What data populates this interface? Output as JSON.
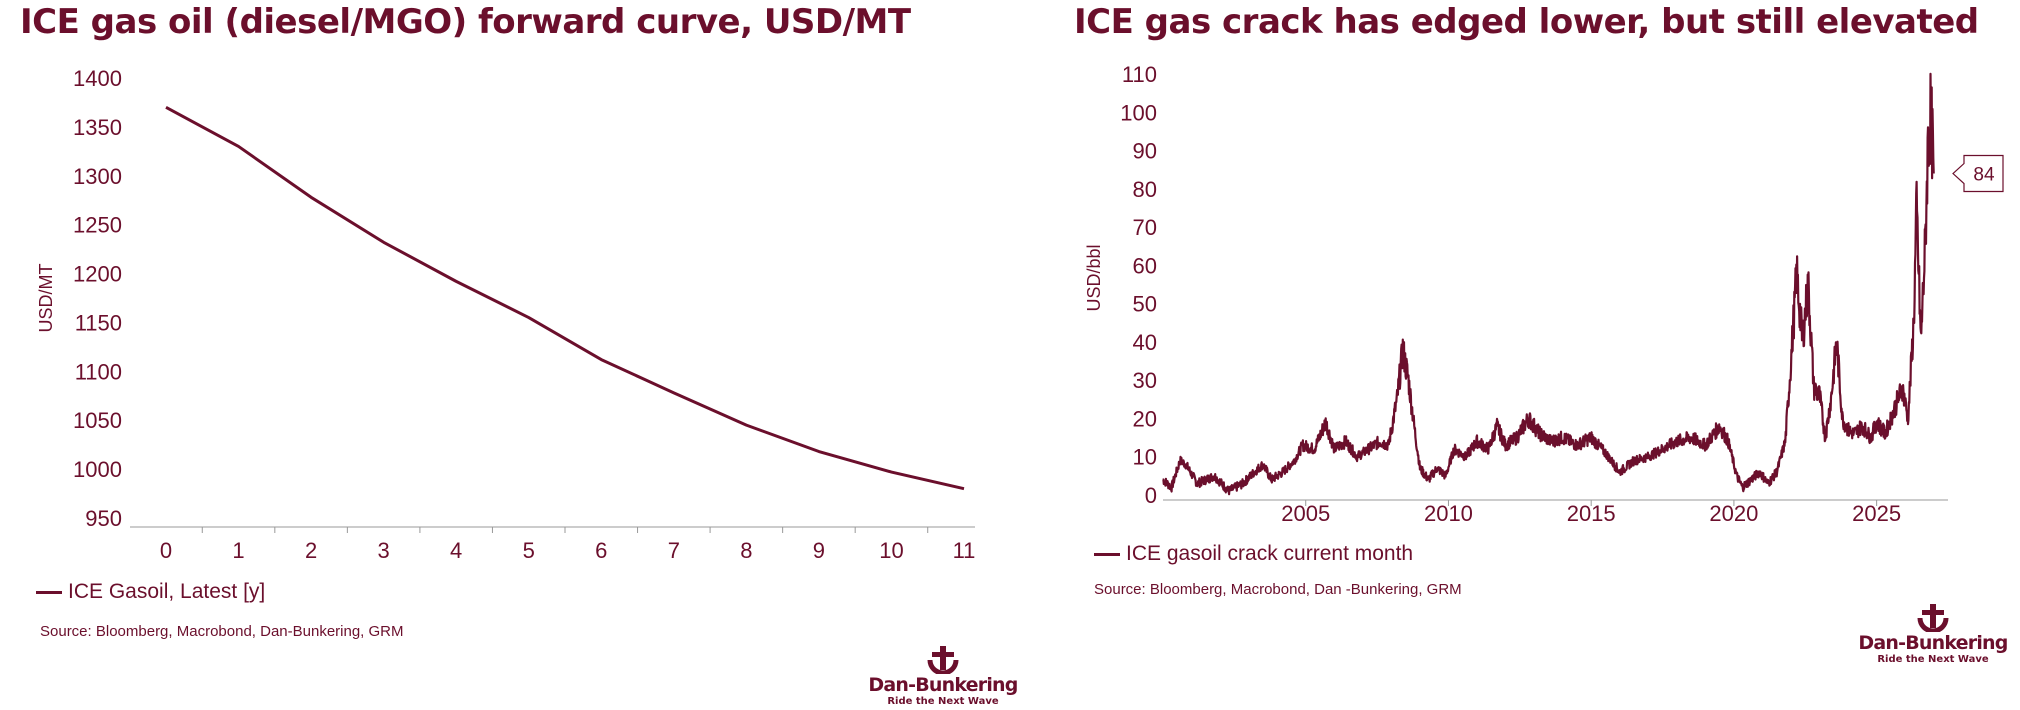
{
  "charts": {
    "left": {
      "title": "ICE gas oil (diesel/MGO) forward curve, USD/MT",
      "legend": "ICE Gasoil, Latest [y]",
      "source": "Source: Bloomberg, Macrobond, Dan-Bunkering, GRM"
    },
    "right": {
      "title": "ICE gas crack has edged lower, but still elevated",
      "legend": "ICE gasoil crack current month",
      "source": "Source: Bloomberg, Macrobond, Dan   -Bunkering, GRM"
    }
  },
  "logo": {
    "name": "Dan-Bunkering",
    "tagline": "Ride the Next Wave"
  },
  "colors": {
    "series": "#6b0f2c",
    "text": "#6b0f2c",
    "axis": "#999999"
  },
  "chart_data": [
    {
      "type": "line",
      "title": "ICE gas oil (diesel/MGO) forward curve, USD/MT",
      "xlabel": "",
      "ylabel": "USD/MT",
      "x": [
        0,
        1,
        2,
        3,
        4,
        5,
        6,
        7,
        8,
        9,
        10,
        11
      ],
      "xticks": [
        0,
        1,
        2,
        3,
        4,
        5,
        6,
        7,
        8,
        9,
        10,
        11
      ],
      "ylim": [
        950,
        1400
      ],
      "yticks": [
        950,
        1000,
        1050,
        1100,
        1150,
        1200,
        1250,
        1300,
        1350,
        1400
      ],
      "grid": false,
      "legend_position": "bottom-left",
      "series": [
        {
          "name": "ICE Gasoil, Latest [y]",
          "values": [
            1370,
            1330,
            1278,
            1232,
            1192,
            1155,
            1112,
            1078,
            1045,
            1018,
            997,
            980
          ]
        }
      ]
    },
    {
      "type": "line",
      "title": "ICE gas crack has edged lower, but still elevated",
      "xlabel": "",
      "ylabel": "USD/bbl",
      "xlim": [
        2000,
        2027.5
      ],
      "xticks": [
        2005,
        2010,
        2015,
        2020,
        2025
      ],
      "ylim": [
        0,
        110
      ],
      "yticks": [
        0,
        10,
        20,
        30,
        40,
        50,
        60,
        70,
        80,
        90,
        100,
        110
      ],
      "grid": false,
      "legend_position": "bottom-left",
      "annotation": {
        "value": "84",
        "y": 84
      },
      "series": [
        {
          "name": "ICE gasoil crack current month",
          "points": [
            [
              2000.0,
              4
            ],
            [
              2000.3,
              2
            ],
            [
              2000.6,
              9
            ],
            [
              2000.8,
              8
            ],
            [
              2001.2,
              3
            ],
            [
              2001.8,
              5
            ],
            [
              2002.3,
              1
            ],
            [
              2002.8,
              3
            ],
            [
              2003.2,
              6
            ],
            [
              2003.5,
              8
            ],
            [
              2003.8,
              4
            ],
            [
              2004.2,
              6
            ],
            [
              2004.6,
              9
            ],
            [
              2004.9,
              13
            ],
            [
              2005.3,
              12
            ],
            [
              2005.7,
              19
            ],
            [
              2006.0,
              12
            ],
            [
              2006.4,
              14
            ],
            [
              2006.8,
              10
            ],
            [
              2007.2,
              12
            ],
            [
              2007.6,
              14
            ],
            [
              2007.9,
              13
            ],
            [
              2008.2,
              25
            ],
            [
              2008.4,
              38
            ],
            [
              2008.6,
              30
            ],
            [
              2008.8,
              18
            ],
            [
              2009.0,
              7
            ],
            [
              2009.3,
              4
            ],
            [
              2009.6,
              7
            ],
            [
              2009.9,
              5
            ],
            [
              2010.2,
              12
            ],
            [
              2010.6,
              10
            ],
            [
              2011.0,
              14
            ],
            [
              2011.4,
              12
            ],
            [
              2011.7,
              18
            ],
            [
              2012.0,
              13
            ],
            [
              2012.4,
              15
            ],
            [
              2012.8,
              20
            ],
            [
              2013.2,
              16
            ],
            [
              2013.6,
              14
            ],
            [
              2014.0,
              15
            ],
            [
              2014.5,
              13
            ],
            [
              2015.0,
              15
            ],
            [
              2015.5,
              11
            ],
            [
              2016.0,
              6
            ],
            [
              2016.5,
              9
            ],
            [
              2017.0,
              10
            ],
            [
              2017.5,
              12
            ],
            [
              2018.0,
              14
            ],
            [
              2018.5,
              15
            ],
            [
              2019.0,
              13
            ],
            [
              2019.5,
              18
            ],
            [
              2019.8,
              14
            ],
            [
              2020.1,
              5
            ],
            [
              2020.3,
              2
            ],
            [
              2020.6,
              4
            ],
            [
              2020.9,
              6
            ],
            [
              2021.2,
              3
            ],
            [
              2021.5,
              6
            ],
            [
              2021.8,
              14
            ],
            [
              2022.0,
              35
            ],
            [
              2022.2,
              58
            ],
            [
              2022.4,
              40
            ],
            [
              2022.6,
              55
            ],
            [
              2022.8,
              28
            ],
            [
              2023.0,
              26
            ],
            [
              2023.2,
              15
            ],
            [
              2023.4,
              25
            ],
            [
              2023.6,
              40
            ],
            [
              2023.8,
              20
            ],
            [
              2024.0,
              17
            ],
            [
              2024.2,
              16
            ],
            [
              2024.5,
              18
            ],
            [
              2024.8,
              15
            ],
            [
              2025.0,
              19
            ],
            [
              2025.3,
              16
            ],
            [
              2025.6,
              22
            ],
            [
              2025.9,
              28
            ],
            [
              2026.1,
              20
            ],
            [
              2026.3,
              45
            ],
            [
              2026.4,
              75
            ],
            [
              2026.55,
              40
            ],
            [
              2026.7,
              65
            ],
            [
              2026.8,
              92
            ],
            [
              2026.9,
              100
            ],
            [
              2027.0,
              84
            ]
          ]
        }
      ]
    }
  ]
}
